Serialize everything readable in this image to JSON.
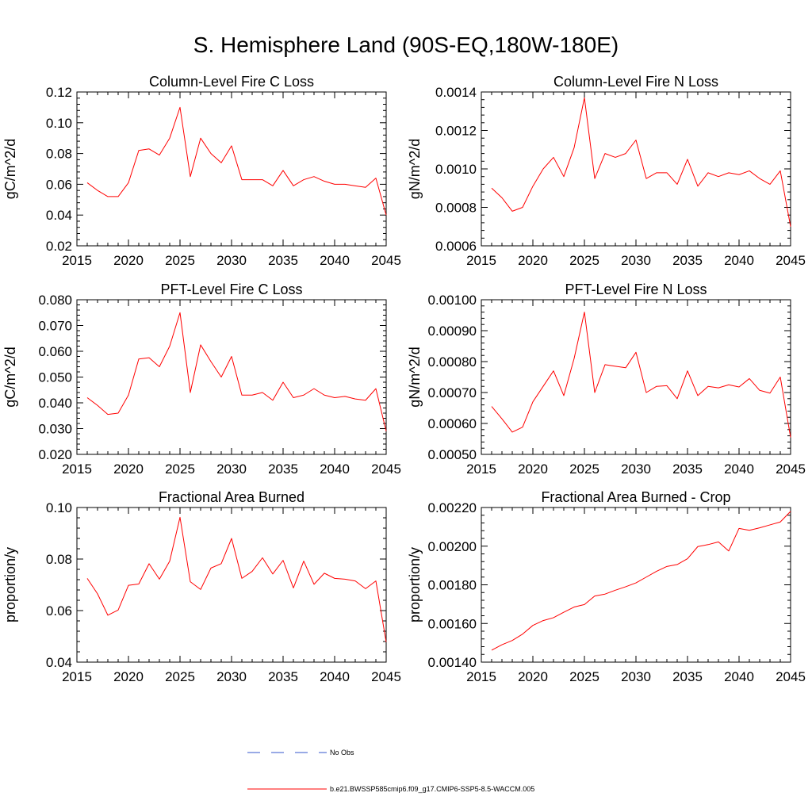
{
  "page_title": "S. Hemisphere Land (90S-EQ,180W-180E)",
  "legend": {
    "obs_label": "No Obs",
    "model_label": "b.e21.BWSSP585cmip6.f09_g17.CMIP6-SSP5-8.5-WACCM.005",
    "obs_color": "#3355cc",
    "model_color": "#ff0000"
  },
  "chart_data": [
    {
      "type": "line",
      "title": "Column-Level Fire C Loss",
      "ylabel": "gC/m^2/d",
      "xlim": [
        2015,
        2045
      ],
      "ylim": [
        0.02,
        0.12
      ],
      "xticks": [
        "2015",
        "2020",
        "2025",
        "2030",
        "2035",
        "2040",
        "2045"
      ],
      "yticks": [
        "0.02",
        "0.04",
        "0.06",
        "0.08",
        "0.10",
        "0.12"
      ],
      "x": [
        2016,
        2017,
        2018,
        2019,
        2020,
        2021,
        2022,
        2023,
        2024,
        2025,
        2026,
        2027,
        2028,
        2029,
        2030,
        2031,
        2032,
        2033,
        2034,
        2035,
        2036,
        2037,
        2038,
        2039,
        2040,
        2041,
        2042,
        2043,
        2044,
        2045
      ],
      "series": [
        {
          "values": [
            0.061,
            0.056,
            0.052,
            0.052,
            0.061,
            0.082,
            0.083,
            0.079,
            0.09,
            0.11,
            0.065,
            0.09,
            0.08,
            0.074,
            0.085,
            0.063,
            0.063,
            0.063,
            0.059,
            0.069,
            0.059,
            0.063,
            0.065,
            0.062,
            0.06,
            0.06,
            0.059,
            0.058,
            0.064,
            0.04
          ]
        }
      ]
    },
    {
      "type": "line",
      "title": "Column-Level Fire N Loss",
      "ylabel": "gN/m^2/d",
      "xlim": [
        2015,
        2045
      ],
      "ylim": [
        0.0006,
        0.0014
      ],
      "xticks": [
        "2015",
        "2020",
        "2025",
        "2030",
        "2035",
        "2040",
        "2045"
      ],
      "yticks": [
        "0.0006",
        "0.0008",
        "0.0010",
        "0.0012",
        "0.0014"
      ],
      "x": [
        2016,
        2017,
        2018,
        2019,
        2020,
        2021,
        2022,
        2023,
        2024,
        2025,
        2026,
        2027,
        2028,
        2029,
        2030,
        2031,
        2032,
        2033,
        2034,
        2035,
        2036,
        2037,
        2038,
        2039,
        2040,
        2041,
        2042,
        2043,
        2044,
        2045
      ],
      "series": [
        {
          "values": [
            0.0009,
            0.00085,
            0.00078,
            0.0008,
            0.00091,
            0.001,
            0.00106,
            0.00096,
            0.00111,
            0.00137,
            0.00095,
            0.00108,
            0.00106,
            0.00108,
            0.00115,
            0.00095,
            0.00098,
            0.00098,
            0.00092,
            0.00105,
            0.00091,
            0.00098,
            0.00096,
            0.00098,
            0.00097,
            0.00099,
            0.00095,
            0.00092,
            0.00099,
            0.0007
          ]
        }
      ]
    },
    {
      "type": "line",
      "title": "PFT-Level Fire C Loss",
      "ylabel": "gC/m^2/d",
      "xlim": [
        2015,
        2045
      ],
      "ylim": [
        0.02,
        0.08
      ],
      "xticks": [
        "2015",
        "2020",
        "2025",
        "2030",
        "2035",
        "2040",
        "2045"
      ],
      "yticks": [
        "0.020",
        "0.030",
        "0.040",
        "0.050",
        "0.060",
        "0.070",
        "0.080"
      ],
      "x": [
        2016,
        2017,
        2018,
        2019,
        2020,
        2021,
        2022,
        2023,
        2024,
        2025,
        2026,
        2027,
        2028,
        2029,
        2030,
        2031,
        2032,
        2033,
        2034,
        2035,
        2036,
        2037,
        2038,
        2039,
        2040,
        2041,
        2042,
        2043,
        2044,
        2045
      ],
      "series": [
        {
          "values": [
            0.042,
            0.039,
            0.0355,
            0.036,
            0.043,
            0.057,
            0.0575,
            0.054,
            0.062,
            0.075,
            0.044,
            0.0625,
            0.056,
            0.05,
            0.058,
            0.043,
            0.043,
            0.044,
            0.041,
            0.048,
            0.042,
            0.043,
            0.0455,
            0.043,
            0.042,
            0.0425,
            0.0415,
            0.041,
            0.0455,
            0.029
          ]
        }
      ]
    },
    {
      "type": "line",
      "title": "PFT-Level Fire N Loss",
      "ylabel": "gN/m^2/d",
      "xlim": [
        2015,
        2045
      ],
      "ylim": [
        0.0005,
        0.001
      ],
      "xticks": [
        "2015",
        "2020",
        "2025",
        "2030",
        "2035",
        "2040",
        "2045"
      ],
      "yticks": [
        "0.00050",
        "0.00060",
        "0.00070",
        "0.00080",
        "0.00090",
        "0.00100"
      ],
      "x": [
        2016,
        2017,
        2018,
        2019,
        2020,
        2021,
        2022,
        2023,
        2024,
        2025,
        2026,
        2027,
        2028,
        2029,
        2030,
        2031,
        2032,
        2033,
        2034,
        2035,
        2036,
        2037,
        2038,
        2039,
        2040,
        2041,
        2042,
        2043,
        2044,
        2045
      ],
      "series": [
        {
          "values": [
            0.000655,
            0.000615,
            0.000572,
            0.000588,
            0.00067,
            0.00072,
            0.00077,
            0.00069,
            0.00081,
            0.00096,
            0.0007,
            0.00079,
            0.000785,
            0.00078,
            0.00083,
            0.0007,
            0.00072,
            0.000722,
            0.00068,
            0.00077,
            0.00069,
            0.00072,
            0.000715,
            0.000725,
            0.000718,
            0.000745,
            0.000707,
            0.000698,
            0.00075,
            0.000555
          ]
        }
      ]
    },
    {
      "type": "line",
      "title": "Fractional Area Burned",
      "ylabel": "proportion/y",
      "xlim": [
        2015,
        2045
      ],
      "ylim": [
        0.04,
        0.1
      ],
      "xticks": [
        "2015",
        "2020",
        "2025",
        "2030",
        "2035",
        "2040",
        "2045"
      ],
      "yticks": [
        "0.04",
        "0.06",
        "0.08",
        "0.10"
      ],
      "x": [
        2016,
        2017,
        2018,
        2019,
        2020,
        2021,
        2022,
        2023,
        2024,
        2025,
        2026,
        2027,
        2028,
        2029,
        2030,
        2031,
        2032,
        2033,
        2034,
        2035,
        2036,
        2037,
        2038,
        2039,
        2040,
        2041,
        2042,
        2043,
        2044,
        2045
      ],
      "series": [
        {
          "values": [
            0.0725,
            0.0665,
            0.0582,
            0.0602,
            0.0698,
            0.0703,
            0.0782,
            0.0722,
            0.0792,
            0.0962,
            0.0712,
            0.0682,
            0.0765,
            0.0782,
            0.088,
            0.0725,
            0.0752,
            0.0805,
            0.0742,
            0.0795,
            0.0688,
            0.0792,
            0.0702,
            0.0745,
            0.0725,
            0.0722,
            0.0715,
            0.0685,
            0.0715,
            0.0478
          ]
        }
      ]
    },
    {
      "type": "line",
      "title": "Fractional Area Burned - Crop",
      "ylabel": "proportion/y",
      "xlim": [
        2015,
        2045
      ],
      "ylim": [
        0.0014,
        0.0022
      ],
      "xticks": [
        "2015",
        "2020",
        "2025",
        "2030",
        "2035",
        "2040",
        "2045"
      ],
      "yticks": [
        "0.00140",
        "0.00160",
        "0.00180",
        "0.00200",
        "0.00220"
      ],
      "x": [
        2016,
        2017,
        2018,
        2019,
        2020,
        2021,
        2022,
        2023,
        2024,
        2025,
        2026,
        2027,
        2028,
        2029,
        2030,
        2031,
        2032,
        2033,
        2034,
        2035,
        2036,
        2037,
        2038,
        2039,
        2040,
        2041,
        2042,
        2043,
        2044,
        2045
      ],
      "series": [
        {
          "values": [
            0.001462,
            0.00149,
            0.001512,
            0.001545,
            0.00159,
            0.001615,
            0.00163,
            0.001658,
            0.001685,
            0.001698,
            0.001742,
            0.001752,
            0.001772,
            0.00179,
            0.00181,
            0.00184,
            0.00187,
            0.001895,
            0.001905,
            0.001935,
            0.001998,
            0.002008,
            0.002022,
            0.001975,
            0.002092,
            0.002082,
            0.002095,
            0.00211,
            0.002125,
            0.00218
          ]
        }
      ]
    }
  ]
}
